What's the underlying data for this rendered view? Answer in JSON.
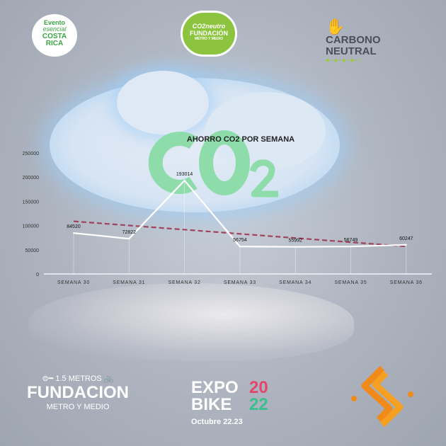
{
  "logos": {
    "costa_rica": [
      "Evento",
      "esencial",
      "COSTA",
      "RICA"
    ],
    "co2_neutro": {
      "line1": "CO2neutro",
      "line2": "FUNDACIÓN",
      "line3": "METRO Y MEDIO"
    },
    "carbono_neutral": [
      "CARBONO",
      "NEUTRAL"
    ],
    "fundacion": {
      "distance": "1.5 METROS",
      "name": "FUNDACION",
      "subtitle": "METRO Y MEDIO"
    },
    "expobike": {
      "line1": "EXPO",
      "line2": "BIKE",
      "year_top": "20",
      "year_bottom": "22",
      "dates": "Octubre 22.23"
    }
  },
  "background_text": {
    "co2": "CO",
    "sub": "2"
  },
  "chart_data": {
    "type": "line",
    "title": "AHORRO CO2 POR SEMANA",
    "categories": [
      "SEMANA  30",
      "SEMANA 31",
      "SEMANA 32",
      "SEMANA  33",
      "SEMANA  34",
      "SEMANA  35",
      "SEMANA  36"
    ],
    "values": [
      84520,
      72822,
      193014,
      56754,
      55992,
      56749,
      60247
    ],
    "data_labels": [
      "84520",
      "72822",
      "193014",
      "56754",
      "55992",
      "56749",
      "60247"
    ],
    "trendline": {
      "type": "linear",
      "style": "dashed",
      "color": "#9b2d4a"
    },
    "ylim": [
      0,
      250000
    ],
    "yticks": [
      "0",
      "50000",
      "100000",
      "150000",
      "200000",
      "250000"
    ],
    "line_color": "#ffffff",
    "grid": false,
    "legend": "none"
  }
}
